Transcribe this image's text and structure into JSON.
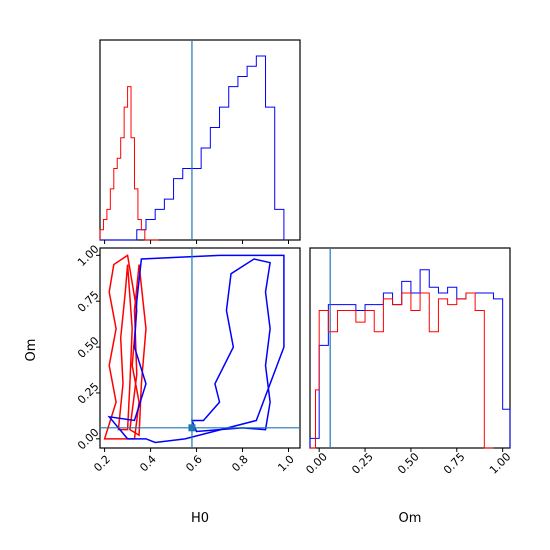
{
  "chart_data": {
    "type": "corner",
    "parameters": [
      "H0",
      "Om"
    ],
    "colors": {
      "samples_a": "#0000ff",
      "samples_b": "#ff0000",
      "truth": "#1f77b4"
    },
    "truth": {
      "H0": 0.58,
      "Om": 0.06
    },
    "axes": {
      "H0": {
        "range": [
          0.18,
          1.05
        ],
        "ticks": [
          "0.2",
          "0.4",
          "0.6",
          "0.8",
          "1.0"
        ],
        "tick_values": [
          0.2,
          0.4,
          0.6,
          0.8,
          1.0
        ],
        "label": "H0"
      },
      "Om": {
        "range": [
          -0.05,
          1.04
        ],
        "ticks": [
          "0.00",
          "0.25",
          "0.50",
          "0.75",
          "1.00"
        ],
        "tick_values": [
          0.0,
          0.25,
          0.5,
          0.75,
          1.0
        ],
        "label": "Om"
      }
    },
    "hist_H0_blue": {
      "edges": [
        0.18,
        0.22,
        0.26,
        0.3,
        0.34,
        0.38,
        0.42,
        0.46,
        0.5,
        0.54,
        0.58,
        0.62,
        0.66,
        0.7,
        0.74,
        0.78,
        0.82,
        0.86,
        0.9,
        0.94,
        0.98
      ],
      "counts": [
        0,
        0,
        0,
        0,
        1,
        2,
        3,
        4,
        6,
        7,
        7,
        9,
        11,
        13,
        15,
        16,
        17,
        18,
        13,
        3
      ]
    },
    "hist_H0_red": {
      "edges": [
        0.18,
        0.195,
        0.21,
        0.225,
        0.24,
        0.255,
        0.27,
        0.285,
        0.3,
        0.315,
        0.33,
        0.345,
        0.36,
        0.375,
        0.39,
        0.405,
        0.42,
        0.435
      ],
      "counts": [
        1,
        2,
        3,
        5,
        7,
        8,
        10,
        13,
        15,
        10,
        5,
        2,
        1,
        0,
        0,
        0,
        0
      ]
    },
    "hist_Om_blue": {
      "edges": [
        -0.05,
        0.0,
        0.05,
        0.1,
        0.15,
        0.2,
        0.25,
        0.3,
        0.35,
        0.4,
        0.45,
        0.5,
        0.55,
        0.6,
        0.65,
        0.7,
        0.75,
        0.8,
        0.85,
        0.9,
        0.95,
        1.0,
        1.04
      ],
      "counts": [
        0.05,
        0.53,
        0.74,
        0.74,
        0.74,
        0.71,
        0.74,
        0.74,
        0.8,
        0.74,
        0.86,
        0.8,
        0.92,
        0.83,
        0.8,
        0.83,
        0.77,
        0.8,
        0.8,
        0.8,
        0.77,
        0.2
      ]
    },
    "hist_Om_red": {
      "edges": [
        -0.05,
        -0.02,
        0.0,
        0.05,
        0.1,
        0.15,
        0.2,
        0.25,
        0.3,
        0.35,
        0.4,
        0.45,
        0.5,
        0.55,
        0.6,
        0.65,
        0.7,
        0.75,
        0.8,
        0.85,
        0.9,
        0.95
      ],
      "counts": [
        0,
        0.3,
        0.71,
        0.6,
        0.71,
        0.71,
        0.65,
        0.71,
        0.6,
        0.77,
        0.74,
        0.8,
        0.71,
        0.8,
        0.6,
        0.77,
        0.74,
        0.77,
        0.8,
        0.71,
        0
      ]
    },
    "hist_ymax": 18,
    "hist_om_ymax": 0.95,
    "contours_blue": [
      [
        [
          0.22,
          0.12
        ],
        [
          0.33,
          0.1
        ],
        [
          0.38,
          0.3
        ],
        [
          0.33,
          0.5
        ],
        [
          0.34,
          0.75
        ],
        [
          0.36,
          0.98
        ],
        [
          0.7,
          1.0
        ],
        [
          0.98,
          1.0
        ],
        [
          0.98,
          0.5
        ],
        [
          0.86,
          0.1
        ],
        [
          0.55,
          0.0
        ],
        [
          0.42,
          -0.02
        ],
        [
          0.38,
          0.0
        ],
        [
          0.3,
          0.0
        ],
        [
          0.22,
          0.12
        ]
      ],
      [
        [
          0.58,
          0.1
        ],
        [
          0.63,
          0.1
        ],
        [
          0.7,
          0.2
        ],
        [
          0.68,
          0.3
        ],
        [
          0.76,
          0.5
        ],
        [
          0.73,
          0.7
        ],
        [
          0.75,
          0.9
        ],
        [
          0.85,
          0.98
        ],
        [
          0.92,
          0.96
        ],
        [
          0.9,
          0.8
        ],
        [
          0.92,
          0.6
        ],
        [
          0.9,
          0.4
        ],
        [
          0.92,
          0.2
        ],
        [
          0.9,
          0.05
        ],
        [
          0.8,
          0.06
        ],
        [
          0.7,
          0.05
        ],
        [
          0.6,
          0.04
        ],
        [
          0.58,
          0.1
        ]
      ]
    ],
    "contours_red": [
      [
        [
          0.2,
          0.0
        ],
        [
          0.25,
          0.2
        ],
        [
          0.22,
          0.4
        ],
        [
          0.25,
          0.6
        ],
        [
          0.22,
          0.8
        ],
        [
          0.24,
          0.95
        ],
        [
          0.3,
          1.0
        ],
        [
          0.34,
          0.7
        ],
        [
          0.32,
          0.4
        ],
        [
          0.35,
          0.2
        ],
        [
          0.33,
          0.0
        ],
        [
          0.2,
          0.0
        ]
      ],
      [
        [
          0.26,
          0.05
        ],
        [
          0.28,
          0.3
        ],
        [
          0.27,
          0.55
        ],
        [
          0.29,
          0.8
        ],
        [
          0.3,
          0.95
        ],
        [
          0.32,
          0.6
        ],
        [
          0.31,
          0.3
        ],
        [
          0.3,
          0.05
        ],
        [
          0.26,
          0.05
        ]
      ],
      [
        [
          0.31,
          0.05
        ],
        [
          0.34,
          0.35
        ],
        [
          0.33,
          0.7
        ],
        [
          0.35,
          0.95
        ],
        [
          0.38,
          0.6
        ],
        [
          0.36,
          0.3
        ],
        [
          0.35,
          0.02
        ],
        [
          0.31,
          0.05
        ]
      ]
    ]
  }
}
